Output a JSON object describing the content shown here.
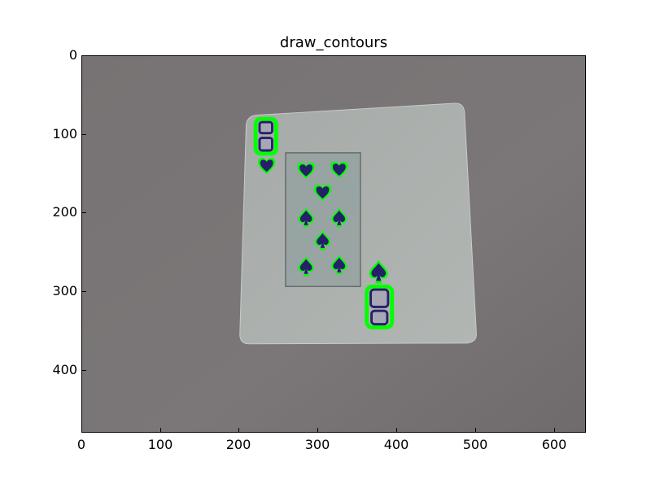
{
  "figure": {
    "title": "draw_contours"
  },
  "axes": {
    "x_ticks": [
      "0",
      "100",
      "200",
      "300",
      "400",
      "500",
      "600"
    ],
    "y_ticks": [
      "0",
      "100",
      "200",
      "300",
      "400"
    ]
  },
  "image": {
    "subject": "eight-of-spades-card",
    "card_rank": "8",
    "contour_color": "#00ff00",
    "pip_color": "#25206a",
    "background_color": "#7a7677",
    "card_color": "#a9aeab"
  }
}
